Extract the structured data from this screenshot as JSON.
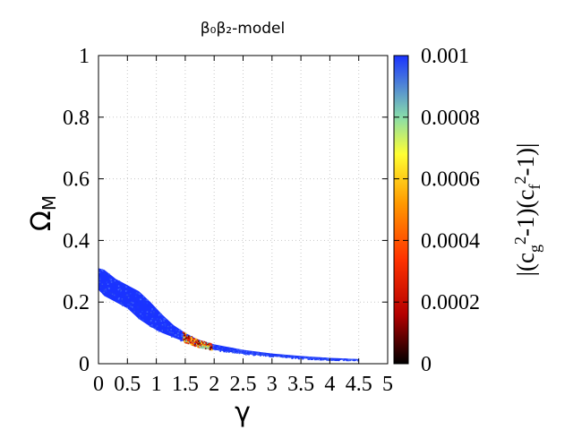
{
  "chart_data": {
    "type": "scatter",
    "title": "β₀β₂-model",
    "xlabel": "γ",
    "ylabel": "Ω_M",
    "xlim": [
      0,
      5
    ],
    "ylim": [
      0,
      1
    ],
    "x_ticks": [
      "0",
      "0.5",
      "1",
      "1.5",
      "2",
      "2.5",
      "3",
      "3.5",
      "4",
      "4.5",
      "5"
    ],
    "y_ticks": [
      "0",
      "0.2",
      "0.4",
      "0.6",
      "0.8",
      "1"
    ],
    "grid": true,
    "colorbar": {
      "label": "|(c_g²-1)(c_f²-1)|",
      "range": [
        0,
        0.001
      ],
      "ticks": [
        "0",
        "0.0002",
        "0.0004",
        "0.0006",
        "0.0008",
        "0.001"
      ],
      "palette": [
        "#000000",
        "#b40000",
        "#ff3300",
        "#ff9900",
        "#ffff33",
        "#88ddaa",
        "#1a33ff"
      ]
    },
    "band": {
      "upper": [
        [
          0.0,
          0.31
        ],
        [
          0.1,
          0.305
        ],
        [
          0.3,
          0.275
        ],
        [
          0.5,
          0.255
        ],
        [
          0.7,
          0.235
        ],
        [
          0.9,
          0.2
        ],
        [
          1.1,
          0.16
        ],
        [
          1.3,
          0.125
        ],
        [
          1.5,
          0.1
        ],
        [
          1.7,
          0.08
        ],
        [
          2.0,
          0.063
        ],
        [
          2.5,
          0.045
        ],
        [
          3.0,
          0.033
        ],
        [
          3.5,
          0.025
        ],
        [
          4.0,
          0.019
        ],
        [
          4.5,
          0.015
        ]
      ],
      "lower": [
        [
          0.0,
          0.24
        ],
        [
          0.1,
          0.22
        ],
        [
          0.3,
          0.2
        ],
        [
          0.5,
          0.18
        ],
        [
          0.7,
          0.145
        ],
        [
          0.9,
          0.12
        ],
        [
          1.1,
          0.1
        ],
        [
          1.3,
          0.085
        ],
        [
          1.5,
          0.07
        ],
        [
          1.7,
          0.057
        ],
        [
          2.0,
          0.045
        ],
        [
          2.5,
          0.032
        ],
        [
          3.0,
          0.024
        ],
        [
          3.5,
          0.017
        ],
        [
          4.0,
          0.013
        ],
        [
          4.5,
          0.012
        ]
      ],
      "base_value": 0.001
    },
    "hotspot": {
      "x_range": [
        1.45,
        1.95
      ],
      "values": [
        0.0001,
        0.0002,
        0.0003,
        0.0004,
        0.0006,
        0.0008
      ]
    }
  }
}
